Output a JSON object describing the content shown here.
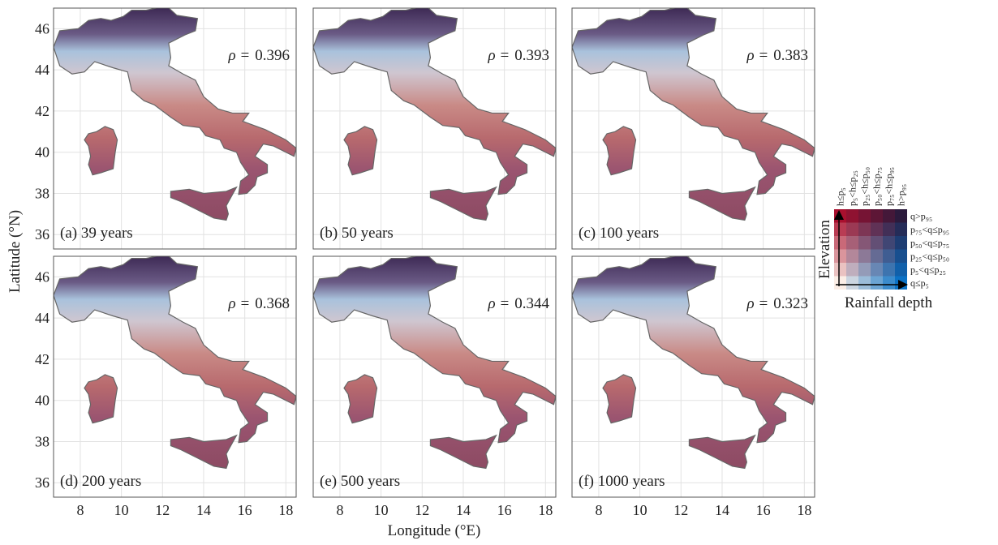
{
  "figure": {
    "type": "map",
    "x_label": "Longitude (°E)",
    "y_label": "Latitude (°N)",
    "rho_label": "ρ =",
    "xlim": [
      6.7,
      18.5
    ],
    "ylim": [
      35.3,
      47.0
    ],
    "xticks": [
      8,
      10,
      12,
      14,
      16,
      18
    ],
    "yticks": [
      36,
      38,
      40,
      42,
      44,
      46
    ],
    "grid": true,
    "panels": [
      {
        "label": "(a) 39 years",
        "rho": 0.396
      },
      {
        "label": "(b) 50 years",
        "rho": 0.393
      },
      {
        "label": "(c) 100 years",
        "rho": 0.383
      },
      {
        "label": "(d) 200 years",
        "rho": 0.368
      },
      {
        "label": "(e) 500 years",
        "rho": 0.344
      },
      {
        "label": "(f) 1000 years",
        "rho": 0.323
      }
    ]
  },
  "legend": {
    "x_label": "Rainfall depth",
    "y_label": "Elevation",
    "columns": [
      "h≤p₅",
      "p₅<h≤p₂₅",
      "p₂₅<h≤p₅₀",
      "p₅₀<h≤p₇₅",
      "p₇₅<h≤p₉₅",
      "h>p₉₅"
    ],
    "rows": [
      "q>p₉₅",
      "p₇₅<q≤p₉₅",
      "p₅₀<q≤p₇₅",
      "p₂₅<q≤p₅₀",
      "p₅<q≤p₂₅",
      "q≤p₅"
    ],
    "colors": {
      "top_left": "#a8102e",
      "top_right": "#2b1a3c",
      "bottom_left": "#fbeee6",
      "bottom_right": "#0b72c6"
    }
  }
}
